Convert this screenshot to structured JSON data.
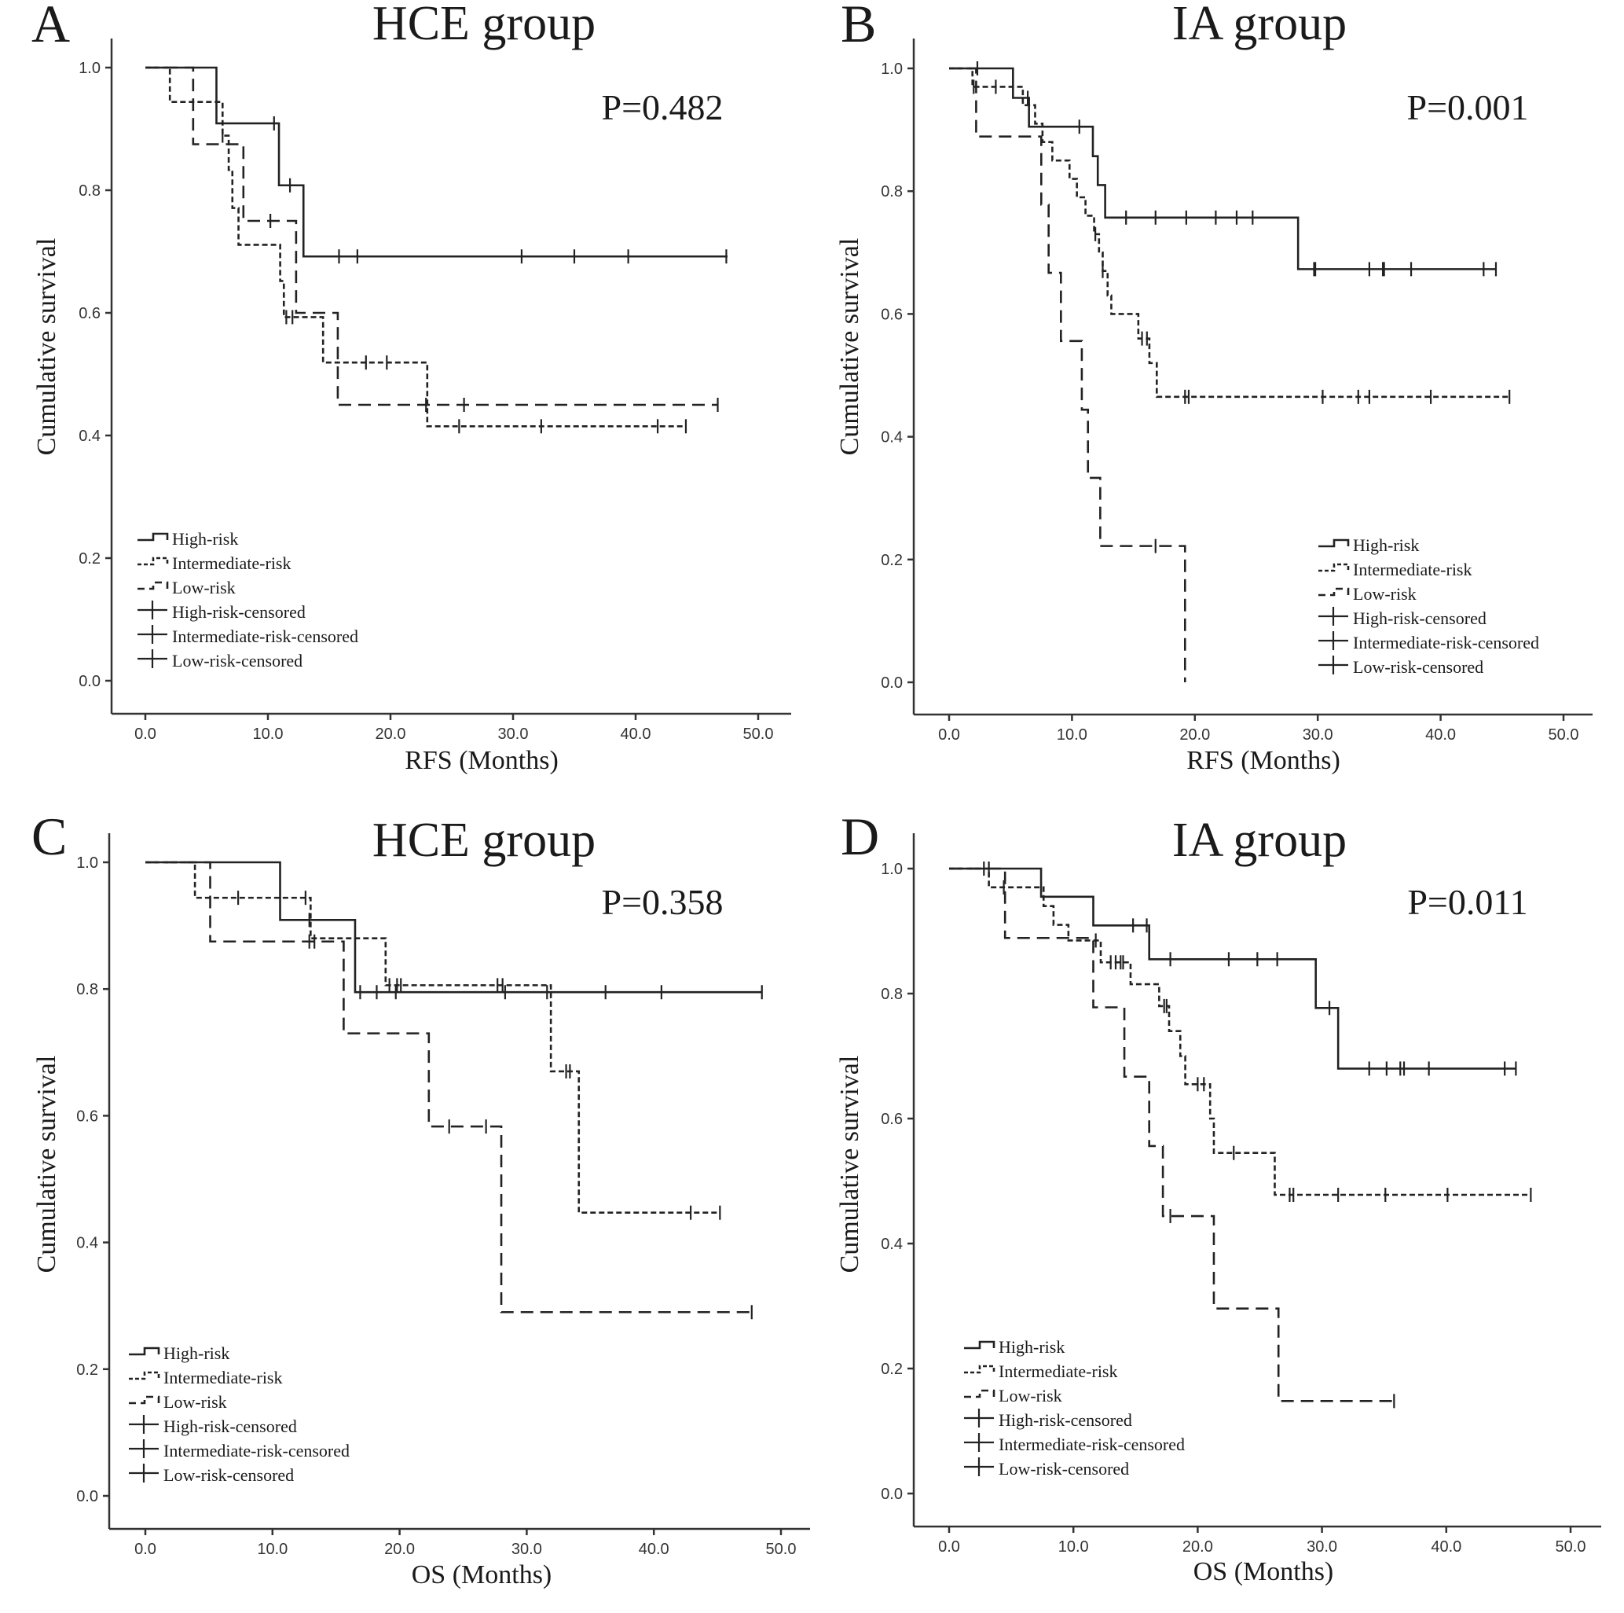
{
  "chart_data": [
    {
      "panel_label": "A",
      "type": "line",
      "title": "HCE group",
      "p_value": "P=0.482",
      "xlabel": "RFS (Months)",
      "ylabel": "Cumulative survival",
      "xlim": [
        0,
        50
      ],
      "ylim": [
        0,
        1
      ],
      "xticks": [
        "0.0",
        "10.0",
        "20.0",
        "30.0",
        "40.0",
        "50.0"
      ],
      "yticks": [
        "0.0",
        "0.2",
        "0.4",
        "0.6",
        "0.8",
        "1.0"
      ],
      "grid": false,
      "legend_position": "bottom-left",
      "legend": [
        "High-risk",
        "Intermediate-risk",
        "Low-risk",
        "High-risk-censored",
        "Intermediate-risk-censored",
        "Low-risk-censored"
      ],
      "series": [
        {
          "name": "High-risk",
          "style": "solid",
          "steps": [
            [
              5.8,
              0.909
            ],
            [
              10.9,
              0.808
            ],
            [
              12.9,
              0.692
            ],
            [
              47.5,
              0.692
            ]
          ],
          "censored": [
            [
              10.5,
              0.909
            ],
            [
              11.8,
              0.808
            ],
            [
              15.8,
              0.692
            ],
            [
              17.3,
              0.692
            ],
            [
              30.7,
              0.692
            ],
            [
              35.0,
              0.692
            ],
            [
              39.4,
              0.692
            ],
            [
              47.4,
              0.692
            ]
          ]
        },
        {
          "name": "Intermediate-risk",
          "style": "fine-dash",
          "steps": [
            [
              2.0,
              0.944
            ],
            [
              6.3,
              0.889
            ],
            [
              6.8,
              0.833
            ],
            [
              7.1,
              0.771
            ],
            [
              7.6,
              0.711
            ],
            [
              11.0,
              0.652
            ],
            [
              11.3,
              0.593
            ],
            [
              14.5,
              0.519
            ],
            [
              23.0,
              0.415
            ],
            [
              44.1,
              0.415
            ]
          ],
          "censored": [
            [
              6.3,
              0.889
            ],
            [
              11.5,
              0.593
            ],
            [
              12.0,
              0.593
            ],
            [
              18.0,
              0.519
            ],
            [
              19.7,
              0.519
            ],
            [
              25.6,
              0.415
            ],
            [
              32.3,
              0.415
            ],
            [
              41.8,
              0.415
            ],
            [
              44.1,
              0.415
            ]
          ]
        },
        {
          "name": "Low-risk",
          "style": "long-dash",
          "steps": [
            [
              3.9,
              0.875
            ],
            [
              8.0,
              0.75
            ],
            [
              12.3,
              0.6
            ],
            [
              15.7,
              0.45
            ],
            [
              46.7,
              0.45
            ]
          ],
          "censored": [
            [
              10.2,
              0.75
            ],
            [
              22.9,
              0.45
            ],
            [
              26.0,
              0.45
            ],
            [
              46.7,
              0.45
            ]
          ]
        }
      ]
    },
    {
      "panel_label": "B",
      "type": "line",
      "title": "IA group",
      "p_value": "P=0.001",
      "xlabel": "RFS (Months)",
      "ylabel": "Cumulative survival",
      "xlim": [
        0,
        50
      ],
      "ylim": [
        0,
        1
      ],
      "xticks": [
        "0.0",
        "10.0",
        "20.0",
        "30.0",
        "40.0",
        "50.0"
      ],
      "yticks": [
        "0.0",
        "0.2",
        "0.4",
        "0.6",
        "0.8",
        "1.0"
      ],
      "grid": false,
      "legend_position": "bottom-right",
      "legend": [
        "High-risk",
        "Intermediate-risk",
        "Low-risk",
        "High-risk-censored",
        "Intermediate-risk-censored",
        "Low-risk-censored"
      ],
      "series": [
        {
          "name": "High-risk",
          "style": "solid",
          "steps": [
            [
              5.2,
              0.952
            ],
            [
              6.5,
              0.905
            ],
            [
              11.7,
              0.857
            ],
            [
              12.1,
              0.81
            ],
            [
              12.7,
              0.757
            ],
            [
              28.4,
              0.673
            ],
            [
              44.5,
              0.673
            ]
          ],
          "censored": [
            [
              6.4,
              0.952
            ],
            [
              10.6,
              0.905
            ],
            [
              14.4,
              0.757
            ],
            [
              16.8,
              0.757
            ],
            [
              19.3,
              0.757
            ],
            [
              21.7,
              0.757
            ],
            [
              23.4,
              0.757
            ],
            [
              24.7,
              0.757
            ],
            [
              29.7,
              0.673
            ],
            [
              29.8,
              0.673
            ],
            [
              34.2,
              0.673
            ],
            [
              35.3,
              0.673
            ],
            [
              35.4,
              0.673
            ],
            [
              37.6,
              0.673
            ],
            [
              43.5,
              0.673
            ],
            [
              44.5,
              0.673
            ]
          ]
        },
        {
          "name": "Intermediate-risk",
          "style": "fine-dash",
          "steps": [
            [
              1.9,
              0.97
            ],
            [
              6.0,
              0.94
            ],
            [
              7.0,
              0.91
            ],
            [
              7.6,
              0.88
            ],
            [
              8.4,
              0.85
            ],
            [
              9.8,
              0.82
            ],
            [
              10.4,
              0.79
            ],
            [
              11.1,
              0.76
            ],
            [
              11.8,
              0.73
            ],
            [
              12.2,
              0.7
            ],
            [
              12.5,
              0.67
            ],
            [
              12.9,
              0.63
            ],
            [
              13.2,
              0.6
            ],
            [
              15.4,
              0.56
            ],
            [
              16.3,
              0.52
            ],
            [
              16.9,
              0.465
            ],
            [
              45.6,
              0.465
            ]
          ],
          "censored": [
            [
              2.0,
              0.97
            ],
            [
              2.3,
              1.0
            ],
            [
              3.8,
              0.97
            ],
            [
              11.9,
              0.73
            ],
            [
              12.5,
              0.67
            ],
            [
              15.7,
              0.56
            ],
            [
              16.1,
              0.56
            ],
            [
              19.2,
              0.465
            ],
            [
              19.5,
              0.465
            ],
            [
              30.4,
              0.465
            ],
            [
              33.3,
              0.465
            ],
            [
              34.2,
              0.465
            ],
            [
              39.2,
              0.465
            ],
            [
              45.6,
              0.465
            ]
          ]
        },
        {
          "name": "Low-risk",
          "style": "long-dash",
          "steps": [
            [
              2.2,
              0.889
            ],
            [
              7.5,
              0.778
            ],
            [
              8.1,
              0.667
            ],
            [
              9.1,
              0.556
            ],
            [
              10.8,
              0.444
            ],
            [
              11.3,
              0.333
            ],
            [
              12.3,
              0.222
            ],
            [
              19.2,
              0.0
            ]
          ],
          "censored": [
            [
              16.8,
              0.222
            ]
          ]
        }
      ]
    },
    {
      "panel_label": "C",
      "type": "line",
      "title": "HCE group",
      "p_value": "P=0.358",
      "xlabel": "OS (Months)",
      "ylabel": "Cumulative survival",
      "xlim": [
        0,
        50
      ],
      "ylim": [
        0,
        1
      ],
      "xticks": [
        "0.0",
        "10.0",
        "20.0",
        "30.0",
        "40.0",
        "50.0"
      ],
      "yticks": [
        "0.0",
        "0.2",
        "0.4",
        "0.6",
        "0.8",
        "1.0"
      ],
      "grid": false,
      "legend_position": "bottom-left",
      "legend": [
        "High-risk",
        "Intermediate-risk",
        "Low-risk",
        "High-risk-censored",
        "Intermediate-risk-censored",
        "Low-risk-censored"
      ],
      "series": [
        {
          "name": "High-risk",
          "style": "solid",
          "steps": [
            [
              10.6,
              0.909
            ],
            [
              16.5,
              0.795
            ],
            [
              48.5,
              0.795
            ]
          ],
          "censored": [
            [
              12.9,
              0.909
            ],
            [
              16.9,
              0.795
            ],
            [
              18.2,
              0.795
            ],
            [
              19.7,
              0.795
            ],
            [
              28.3,
              0.795
            ],
            [
              31.6,
              0.795
            ],
            [
              36.2,
              0.795
            ],
            [
              40.6,
              0.795
            ],
            [
              48.5,
              0.795
            ]
          ]
        },
        {
          "name": "Intermediate-risk",
          "style": "fine-dash",
          "steps": [
            [
              3.9,
              0.944
            ],
            [
              13.0,
              0.88
            ],
            [
              18.9,
              0.806
            ],
            [
              31.9,
              0.67
            ],
            [
              34.1,
              0.447
            ],
            [
              45.2,
              0.447
            ]
          ],
          "censored": [
            [
              7.3,
              0.944
            ],
            [
              12.6,
              0.944
            ],
            [
              19.2,
              0.806
            ],
            [
              19.8,
              0.806
            ],
            [
              20.1,
              0.806
            ],
            [
              27.7,
              0.806
            ],
            [
              28.1,
              0.806
            ],
            [
              33.1,
              0.67
            ],
            [
              33.4,
              0.67
            ],
            [
              42.9,
              0.447
            ],
            [
              45.2,
              0.447
            ]
          ]
        },
        {
          "name": "Low-risk",
          "style": "long-dash",
          "steps": [
            [
              5.1,
              0.875
            ],
            [
              15.6,
              0.73
            ],
            [
              22.3,
              0.583
            ],
            [
              28.0,
              0.29
            ],
            [
              47.7,
              0.29
            ]
          ],
          "censored": [
            [
              12.9,
              0.875
            ],
            [
              13.3,
              0.875
            ],
            [
              23.9,
              0.583
            ],
            [
              26.8,
              0.583
            ],
            [
              47.7,
              0.29
            ]
          ]
        }
      ]
    },
    {
      "panel_label": "D",
      "type": "line",
      "title": "IA group",
      "p_value": "P=0.011",
      "xlabel": "OS (Months)",
      "ylabel": "Cumulative survival",
      "xlim": [
        0,
        50
      ],
      "ylim": [
        0,
        1
      ],
      "xticks": [
        "0.0",
        "10.0",
        "20.0",
        "30.0",
        "40.0",
        "50.0"
      ],
      "yticks": [
        "0.0",
        "0.2",
        "0.4",
        "0.6",
        "0.8",
        "1.0"
      ],
      "grid": false,
      "legend_position": "bottom-left",
      "legend": [
        "High-risk",
        "Intermediate-risk",
        "Low-risk",
        "High-risk-censored",
        "Intermediate-risk-censored",
        "Low-risk-censored"
      ],
      "series": [
        {
          "name": "High-risk",
          "style": "solid",
          "steps": [
            [
              7.4,
              0.955
            ],
            [
              11.6,
              0.909
            ],
            [
              16.1,
              0.855
            ],
            [
              29.5,
              0.777
            ],
            [
              31.3,
              0.68
            ],
            [
              45.6,
              0.68
            ]
          ],
          "censored": [
            [
              2.8,
              1.0
            ],
            [
              3.2,
              1.0
            ],
            [
              14.8,
              0.909
            ],
            [
              15.9,
              0.909
            ],
            [
              17.8,
              0.855
            ],
            [
              22.5,
              0.855
            ],
            [
              24.8,
              0.855
            ],
            [
              26.4,
              0.855
            ],
            [
              30.6,
              0.777
            ],
            [
              33.8,
              0.68
            ],
            [
              35.2,
              0.68
            ],
            [
              36.3,
              0.68
            ],
            [
              36.6,
              0.68
            ],
            [
              38.6,
              0.68
            ],
            [
              44.7,
              0.68
            ],
            [
              45.6,
              0.68
            ]
          ]
        },
        {
          "name": "Intermediate-risk",
          "style": "fine-dash",
          "steps": [
            [
              3.2,
              0.97
            ],
            [
              7.6,
              0.94
            ],
            [
              8.4,
              0.91
            ],
            [
              9.6,
              0.885
            ],
            [
              12.2,
              0.85
            ],
            [
              14.6,
              0.815
            ],
            [
              16.9,
              0.78
            ],
            [
              17.7,
              0.74
            ],
            [
              18.6,
              0.7
            ],
            [
              19.0,
              0.655
            ],
            [
              21.0,
              0.6
            ],
            [
              21.3,
              0.545
            ],
            [
              26.2,
              0.478
            ],
            [
              46.8,
              0.478
            ]
          ],
          "censored": [
            [
              4.4,
              0.97
            ],
            [
              11.8,
              0.885
            ],
            [
              13.0,
              0.85
            ],
            [
              13.4,
              0.85
            ],
            [
              13.8,
              0.85
            ],
            [
              14.0,
              0.85
            ],
            [
              17.3,
              0.78
            ],
            [
              17.5,
              0.78
            ],
            [
              20.0,
              0.655
            ],
            [
              20.5,
              0.655
            ],
            [
              22.9,
              0.545
            ],
            [
              27.4,
              0.478
            ],
            [
              27.7,
              0.478
            ],
            [
              31.3,
              0.478
            ],
            [
              35.1,
              0.478
            ],
            [
              40.1,
              0.478
            ],
            [
              46.8,
              0.478
            ]
          ]
        },
        {
          "name": "Low-risk",
          "style": "long-dash",
          "steps": [
            [
              4.5,
              0.889
            ],
            [
              11.6,
              0.778
            ],
            [
              14.1,
              0.667
            ],
            [
              16.1,
              0.556
            ],
            [
              17.2,
              0.444
            ],
            [
              21.3,
              0.296
            ],
            [
              26.5,
              0.148
            ],
            [
              35.8,
              0.148
            ]
          ],
          "censored": [
            [
              17.8,
              0.444
            ],
            [
              35.8,
              0.148
            ]
          ]
        }
      ]
    }
  ]
}
